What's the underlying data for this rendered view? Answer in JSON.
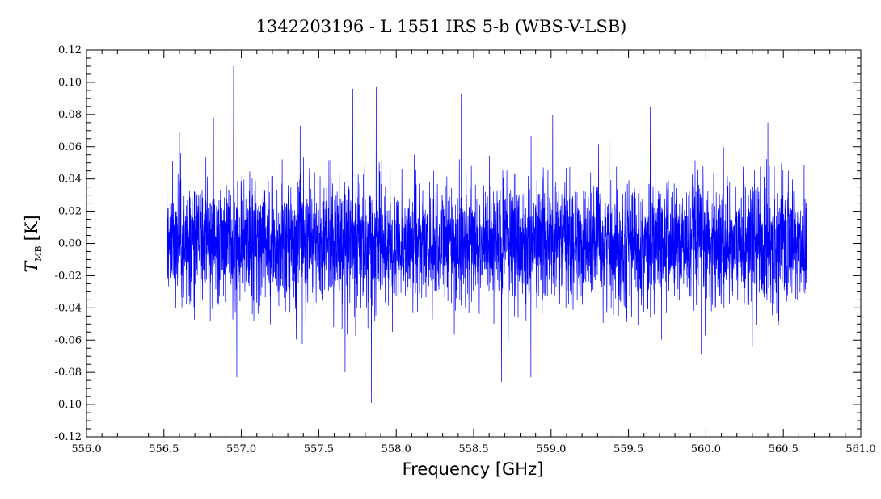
{
  "chart_data": {
    "type": "line",
    "title": "1342203196 - L 1551 IRS 5-b (WBS-V-LSB)",
    "xlabel": "Frequency [GHz]",
    "ylabel_main": "T",
    "ylabel_sub": "MB",
    "ylabel_unit": "[K]",
    "xlim": [
      556.0,
      561.0
    ],
    "ylim": [
      -0.12,
      0.12
    ],
    "x_ticks": [
      "556.0",
      "556.5",
      "557.0",
      "557.5",
      "558.0",
      "558.5",
      "559.0",
      "559.5",
      "560.0",
      "560.5",
      "561.0"
    ],
    "y_ticks": [
      "-0.12",
      "-0.10",
      "-0.08",
      "-0.06",
      "-0.04",
      "-0.02",
      "0.00",
      "0.02",
      "0.04",
      "0.06",
      "0.08",
      "0.10",
      "0.12"
    ],
    "grid": false,
    "series": [
      {
        "color": "#0000ff",
        "x_range": [
          556.52,
          560.65
        ],
        "noise_rms": 0.02,
        "peaks": [
          {
            "x": 556.95,
            "y": 0.11
          },
          {
            "x": 556.6,
            "y": 0.069
          },
          {
            "x": 556.82,
            "y": 0.078
          },
          {
            "x": 557.38,
            "y": 0.073
          },
          {
            "x": 557.72,
            "y": 0.096
          },
          {
            "x": 557.87,
            "y": 0.097
          },
          {
            "x": 558.42,
            "y": 0.093
          },
          {
            "x": 559.01,
            "y": 0.08
          },
          {
            "x": 559.64,
            "y": 0.085
          },
          {
            "x": 560.4,
            "y": 0.075
          }
        ],
        "troughs": [
          {
            "x": 556.97,
            "y": -0.083
          },
          {
            "x": 557.67,
            "y": -0.08
          },
          {
            "x": 557.84,
            "y": -0.099
          },
          {
            "x": 558.68,
            "y": -0.086
          },
          {
            "x": 558.87,
            "y": -0.083
          },
          {
            "x": 559.97,
            "y": -0.069
          },
          {
            "x": 560.3,
            "y": -0.064
          }
        ]
      }
    ]
  }
}
